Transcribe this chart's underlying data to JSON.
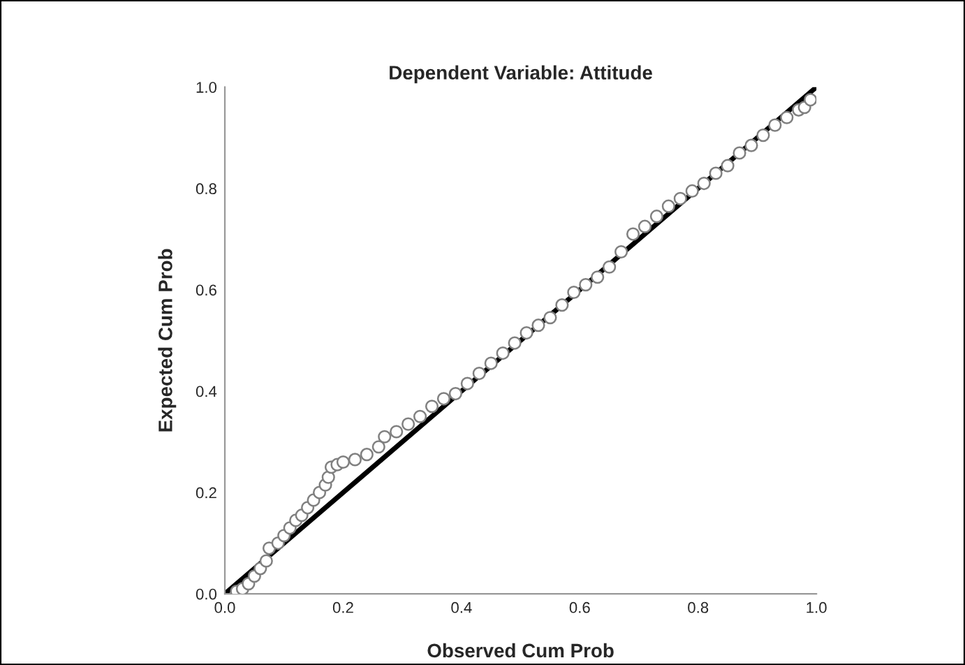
{
  "chart_data": {
    "type": "scatter",
    "title": "Dependent Variable: Attitude",
    "xlabel": "Observed Cum Prob",
    "ylabel": "Expected Cum Prob",
    "xlim": [
      0.0,
      1.0
    ],
    "ylim": [
      0.0,
      1.0
    ],
    "xticks": [
      {
        "value": 0,
        "label": "0.0"
      },
      {
        "value": 0.2,
        "label": "0.2"
      },
      {
        "value": 0.4,
        "label": "0.4"
      },
      {
        "value": 0.6,
        "label": "0.6"
      },
      {
        "value": 0.8,
        "label": "0.8"
      },
      {
        "value": 1,
        "label": "1.0"
      }
    ],
    "yticks": [
      {
        "value": 0,
        "label": "0.0"
      },
      {
        "value": 0.2,
        "label": "0.2"
      },
      {
        "value": 0.4,
        "label": "0.4"
      },
      {
        "value": 0.6,
        "label": "0.6"
      },
      {
        "value": 0.8,
        "label": "0.8"
      },
      {
        "value": 1,
        "label": "1.0"
      }
    ],
    "grid": false,
    "series": [
      {
        "marker": "circle",
        "color": "#808080",
        "x": [
          0.02,
          0.03,
          0.04,
          0.05,
          0.06,
          0.07,
          0.075,
          0.09,
          0.1,
          0.11,
          0.12,
          0.13,
          0.14,
          0.15,
          0.16,
          0.17,
          0.175,
          0.18,
          0.19,
          0.2,
          0.22,
          0.24,
          0.26,
          0.27,
          0.29,
          0.31,
          0.33,
          0.35,
          0.37,
          0.39,
          0.41,
          0.43,
          0.45,
          0.47,
          0.49,
          0.51,
          0.53,
          0.55,
          0.57,
          0.59,
          0.61,
          0.63,
          0.65,
          0.67,
          0.69,
          0.71,
          0.73,
          0.75,
          0.77,
          0.79,
          0.81,
          0.83,
          0.85,
          0.87,
          0.89,
          0.91,
          0.93,
          0.95,
          0.97,
          0.98,
          0.99
        ],
        "values": [
          0.005,
          0.01,
          0.02,
          0.035,
          0.05,
          0.065,
          0.09,
          0.1,
          0.115,
          0.13,
          0.145,
          0.155,
          0.17,
          0.185,
          0.2,
          0.215,
          0.23,
          0.25,
          0.255,
          0.26,
          0.265,
          0.275,
          0.29,
          0.31,
          0.32,
          0.335,
          0.35,
          0.37,
          0.385,
          0.395,
          0.415,
          0.435,
          0.455,
          0.475,
          0.495,
          0.515,
          0.53,
          0.545,
          0.57,
          0.595,
          0.61,
          0.625,
          0.645,
          0.675,
          0.71,
          0.725,
          0.745,
          0.765,
          0.78,
          0.795,
          0.81,
          0.83,
          0.845,
          0.87,
          0.885,
          0.905,
          0.925,
          0.94,
          0.955,
          0.96,
          0.975
        ]
      },
      {
        "type": "line",
        "marker": "none",
        "color": "#000000",
        "x": [
          0,
          1
        ],
        "values": [
          0,
          1
        ]
      }
    ]
  }
}
